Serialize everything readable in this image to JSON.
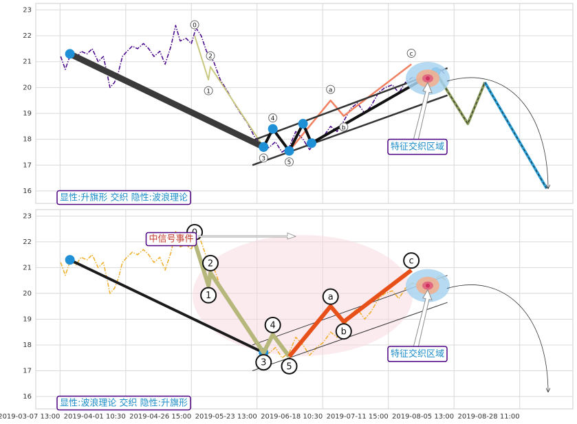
{
  "chart_data": [
    {
      "type": "line",
      "xlim": [
        -37,
        781
      ],
      "ylim": [
        15.52,
        23.25
      ],
      "yticks": [
        16,
        17,
        18,
        19,
        20,
        21,
        22,
        23
      ],
      "grid": true,
      "note": "显性:升旗形 交织 隐性:波浪理论",
      "zone": {
        "x": 560,
        "y": 20.35,
        "label": "特征交织区域"
      },
      "series": [
        {
          "color": "#4b0a8c",
          "width": 1.6,
          "dash": "dashdot",
          "x": [
            1,
            8,
            16,
            24,
            32,
            41,
            49,
            58,
            66,
            72,
            76,
            83,
            89,
            95,
            102,
            110,
            118,
            127,
            135,
            143,
            152,
            160,
            169,
            176,
            183,
            192,
            200,
            207,
            215,
            223,
            234,
            244,
            254,
            265,
            275,
            286,
            296,
            307,
            312,
            319,
            328,
            338,
            349,
            359,
            370,
            380,
            391,
            401,
            412,
            422,
            432,
            443,
            453,
            464,
            474,
            485,
            495,
            506,
            516,
            526,
            537,
            547,
            558,
            568,
            579,
            587
          ],
          "values": [
            21.2,
            20.7,
            21.3,
            21.1,
            21.4,
            21.3,
            21.5,
            21.0,
            21.2,
            20.5,
            20.0,
            20.2,
            20.6,
            21.2,
            21.4,
            21.6,
            21.5,
            21.7,
            21.5,
            21.2,
            21.4,
            20.9,
            21.6,
            22.4,
            21.8,
            21.9,
            21.7,
            22.3,
            22.0,
            21.4,
            21.0,
            20.3,
            19.9,
            19.4,
            19.0,
            18.6,
            18.1,
            17.8,
            17.6,
            17.7,
            17.9,
            17.5,
            17.7,
            18.3,
            18.0,
            17.6,
            17.9,
            18.1,
            18.5,
            18.3,
            18.7,
            19.2,
            19.4,
            19.0,
            19.3,
            19.8,
            20.0,
            20.1,
            19.8,
            20.2,
            20.4,
            20.3,
            20.6,
            20.5,
            20.7,
            20.5
          ]
        },
        {
          "color": "#c8c880",
          "width": 2,
          "x": [
            205,
            226,
            229,
            310,
            324,
            349
          ],
          "values": [
            22.0,
            20.3,
            20.8,
            17.7,
            18.4,
            17.55
          ],
          "labels": [
            "0",
            "1",
            "2",
            "3",
            "4",
            "5"
          ]
        },
        {
          "color": "#f08060",
          "width": 2.5,
          "x": [
            349,
            412,
            432,
            535
          ],
          "values": [
            17.55,
            19.5,
            18.9,
            20.9
          ],
          "labels": [
            null,
            "a",
            "b",
            "c"
          ]
        },
        {
          "color": "#333333",
          "width": 2.5,
          "x": [
            293,
            590
          ],
          "values": [
            17.95,
            20.75
          ]
        },
        {
          "color": "#333333",
          "width": 2.5,
          "x": [
            293,
            590
          ],
          "values": [
            17.0,
            19.7
          ]
        },
        {
          "color": "#3a3a3a",
          "width": 9,
          "x": [
            15,
            310
          ],
          "values": [
            21.3,
            17.7
          ],
          "marker": "#1f8fd6"
        },
        {
          "color": "#111111",
          "width": 4,
          "x": [
            310,
            324,
            349,
            370,
            383,
            572
          ],
          "values": [
            17.7,
            18.4,
            17.55,
            18.6,
            17.85,
            20.6
          ],
          "marker": "#1f8fd6"
        },
        {
          "color": "#8a9a5b",
          "width": 4,
          "dash": "dashed",
          "x": [
            572,
            621,
            647
          ],
          "values": [
            20.6,
            18.6,
            20.2
          ]
        },
        {
          "color": "#2a9fd6",
          "width": 4,
          "dash": "dashed",
          "x": [
            647,
            741
          ],
          "values": [
            20.2,
            16.1
          ]
        }
      ]
    },
    {
      "type": "line",
      "xlim": [
        -37,
        781
      ],
      "ylim": [
        15.52,
        23.25
      ],
      "yticks": [
        16,
        17,
        18,
        19,
        20,
        21,
        22,
        23
      ],
      "grid": true,
      "xticks": [
        {
          "value": 0,
          "label": "2019-03-07 13:00"
        },
        {
          "value": 100,
          "label": "2019-04-01 10:30"
        },
        {
          "value": 200,
          "label": "2019-04-26 15:00"
        },
        {
          "value": 300,
          "label": "2019-05-23 13:00"
        },
        {
          "value": 400,
          "label": "2019-06-18 10:30"
        },
        {
          "value": 500,
          "label": "2019-07-11 15:00"
        },
        {
          "value": 600,
          "label": "2019-08-05 13:00"
        },
        {
          "value": 700,
          "label": "2019-08-28 11:00"
        }
      ],
      "note": "显性:波浪理论 交织 隐性:升旗形",
      "event": "中信号事件",
      "zone": {
        "x": 560,
        "y": 20.3,
        "label": "特征交织区域"
      },
      "series": [
        {
          "color": "#f0b030",
          "width": 1.6,
          "dash": "dashdot",
          "x": [
            1,
            8,
            16,
            24,
            32,
            41,
            49,
            58,
            66,
            72,
            76,
            83,
            89,
            95,
            102,
            110,
            118,
            127,
            135,
            143,
            152,
            160,
            169,
            176,
            183,
            192,
            200,
            207,
            215,
            223,
            234,
            244,
            254,
            265,
            275,
            286,
            296,
            307,
            312,
            319,
            328,
            338,
            349,
            359,
            370,
            380,
            391,
            401,
            412,
            422,
            432,
            443,
            453,
            464,
            474,
            485,
            495,
            506,
            516,
            526,
            537,
            547,
            558,
            568,
            579,
            587
          ],
          "values": [
            21.2,
            20.7,
            21.3,
            21.1,
            21.4,
            21.3,
            21.5,
            21.0,
            21.2,
            20.5,
            20.0,
            20.2,
            20.6,
            21.2,
            21.4,
            21.6,
            21.5,
            21.7,
            21.5,
            21.2,
            21.4,
            20.9,
            21.6,
            22.4,
            21.8,
            21.9,
            21.7,
            22.3,
            22.0,
            21.4,
            21.0,
            20.3,
            19.9,
            19.4,
            19.0,
            18.6,
            18.1,
            17.8,
            17.6,
            17.7,
            17.9,
            17.5,
            17.7,
            18.3,
            18.0,
            17.6,
            17.9,
            18.1,
            18.5,
            18.3,
            18.7,
            19.2,
            19.4,
            19.0,
            19.3,
            19.8,
            20.0,
            20.1,
            19.8,
            20.2,
            20.4,
            20.3,
            20.6,
            20.5,
            20.7,
            20.5
          ]
        },
        {
          "color": "#333333",
          "width": 1,
          "x": [
            293,
            590
          ],
          "values": [
            18.0,
            20.7
          ]
        },
        {
          "color": "#333333",
          "width": 1,
          "x": [
            293,
            590
          ],
          "values": [
            17.0,
            19.65
          ]
        },
        {
          "color": "#1a1a1a",
          "width": 4,
          "x": [
            15,
            310
          ],
          "values": [
            21.3,
            17.7
          ],
          "marker": "#1f8fd6"
        },
        {
          "color": "#b5b87a",
          "width": 6,
          "x": [
            205,
            226,
            229,
            310,
            324,
            349
          ],
          "values": [
            22.0,
            20.3,
            20.8,
            17.7,
            18.4,
            17.55
          ],
          "labels": [
            "0",
            "1",
            "2",
            "3",
            "4",
            "5"
          ],
          "big": true
        },
        {
          "color": "#e8501a",
          "width": 6,
          "x": [
            349,
            412,
            432,
            535
          ],
          "values": [
            17.55,
            19.5,
            18.9,
            20.9
          ],
          "labels": [
            null,
            "a",
            "b",
            "c"
          ],
          "big": true
        }
      ]
    }
  ]
}
